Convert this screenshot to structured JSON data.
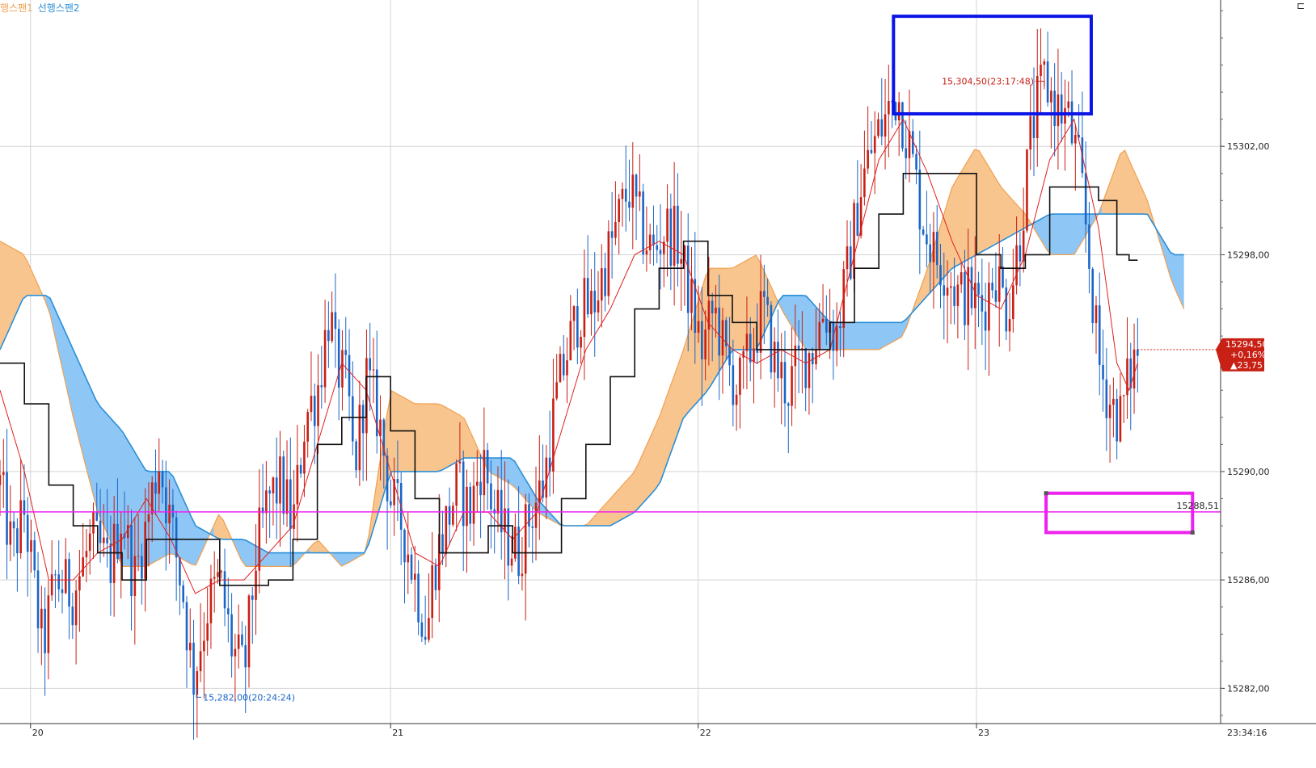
{
  "legend": {
    "span1": "행스팬1",
    "span2": "선행스팬2",
    "span1_color": "#f0a050",
    "span2_color": "#2a8fd8"
  },
  "corner_icon": "menu-icon",
  "chart_data": {
    "type": "candlestick",
    "indicator": "ichimoku",
    "ylim": [
      15280.7,
      15307.4
    ],
    "y_ticks": [
      "15302,00",
      "15298,00",
      "15290,00",
      "15286,00",
      "15282,00"
    ],
    "y_tick_values": [
      15302,
      15298,
      15290,
      15286,
      15282
    ],
    "x_ticks": [
      "20",
      "21",
      "22",
      "23"
    ],
    "x_tick_positions": [
      0.025,
      0.32,
      0.572,
      0.8
    ],
    "time_label": "23:34:16",
    "annotations": {
      "high": "15,304,50(23:17:48)",
      "low": "15,282,00(20:24:24)",
      "hline_label": "15288,51",
      "hline_value": 15288.51
    },
    "current_price": {
      "value": "15294,50",
      "change_pct": "+0,16%",
      "change": "▲23,75",
      "price": 15294.5
    },
    "colors": {
      "up": "#c82014",
      "down": "#1a66c8",
      "conversion": "#e02020",
      "base": "#111111",
      "cloud_bull": "#f9c58e",
      "cloud_bear": "#8ec6f5",
      "span1_line": "#f0a050",
      "span2_line": "#2a8fd8",
      "hline": "#ee22ee",
      "box_high": "#0a14e6",
      "box_low": "#ee22ee",
      "price_tag": "#c82014"
    },
    "price_path": [
      [
        0.0,
        15289.5
      ],
      [
        0.01,
        15287.0
      ],
      [
        0.02,
        15288.5
      ],
      [
        0.03,
        15285.0
      ],
      [
        0.035,
        15283.5
      ],
      [
        0.045,
        15286.0
      ],
      [
        0.06,
        15285.5
      ],
      [
        0.075,
        15287.5
      ],
      [
        0.09,
        15286.5
      ],
      [
        0.1,
        15288.5
      ],
      [
        0.11,
        15286.0
      ],
      [
        0.12,
        15288.0
      ],
      [
        0.13,
        15290.5
      ],
      [
        0.14,
        15288.0
      ],
      [
        0.15,
        15285.5
      ],
      [
        0.158,
        15282.3
      ],
      [
        0.17,
        15285.0
      ],
      [
        0.18,
        15286.0
      ],
      [
        0.19,
        15283.5
      ],
      [
        0.2,
        15282.5
      ],
      [
        0.21,
        15287.0
      ],
      [
        0.22,
        15289.0
      ],
      [
        0.23,
        15289.5
      ],
      [
        0.24,
        15288.0
      ],
      [
        0.25,
        15292.0
      ],
      [
        0.26,
        15293.0
      ],
      [
        0.27,
        15296.0
      ],
      [
        0.275,
        15294.0
      ],
      [
        0.285,
        15293.0
      ],
      [
        0.29,
        15290.0
      ],
      [
        0.3,
        15293.5
      ],
      [
        0.31,
        15292.0
      ],
      [
        0.32,
        15289.0
      ],
      [
        0.33,
        15288.0
      ],
      [
        0.34,
        15286.0
      ],
      [
        0.35,
        15284.0
      ],
      [
        0.355,
        15286.5
      ],
      [
        0.365,
        15288.0
      ],
      [
        0.375,
        15289.5
      ],
      [
        0.385,
        15288.5
      ],
      [
        0.395,
        15290.5
      ],
      [
        0.405,
        15288.5
      ],
      [
        0.415,
        15287.5
      ],
      [
        0.425,
        15287.0
      ],
      [
        0.435,
        15288.5
      ],
      [
        0.445,
        15289.5
      ],
      [
        0.455,
        15292.5
      ],
      [
        0.465,
        15294.5
      ],
      [
        0.475,
        15296.0
      ],
      [
        0.485,
        15296.0
      ],
      [
        0.495,
        15297.5
      ],
      [
        0.505,
        15299.0
      ],
      [
        0.515,
        15300.5
      ],
      [
        0.525,
        15299.0
      ],
      [
        0.535,
        15298.0
      ],
      [
        0.545,
        15299.0
      ],
      [
        0.555,
        15298.5
      ],
      [
        0.565,
        15296.5
      ],
      [
        0.575,
        15294.5
      ],
      [
        0.585,
        15296.0
      ],
      [
        0.595,
        15294.0
      ],
      [
        0.605,
        15293.0
      ],
      [
        0.615,
        15294.5
      ],
      [
        0.625,
        15296.0
      ],
      [
        0.635,
        15294.0
      ],
      [
        0.645,
        15293.0
      ],
      [
        0.655,
        15294.0
      ],
      [
        0.665,
        15294.5
      ],
      [
        0.675,
        15296.0
      ],
      [
        0.685,
        15295.0
      ],
      [
        0.695,
        15297.5
      ],
      [
        0.705,
        15300.5
      ],
      [
        0.715,
        15302.0
      ],
      [
        0.725,
        15303.0
      ],
      [
        0.735,
        15304.0
      ],
      [
        0.745,
        15302.0
      ],
      [
        0.755,
        15299.5
      ],
      [
        0.765,
        15298.0
      ],
      [
        0.775,
        15297.5
      ],
      [
        0.785,
        15296.5
      ],
      [
        0.795,
        15296.5
      ],
      [
        0.805,
        15296.0
      ],
      [
        0.815,
        15297.5
      ],
      [
        0.825,
        15296.0
      ],
      [
        0.835,
        15298.5
      ],
      [
        0.845,
        15302.5
      ],
      [
        0.855,
        15304.5
      ],
      [
        0.865,
        15303.5
      ],
      [
        0.875,
        15303.0
      ],
      [
        0.885,
        15301.0
      ],
      [
        0.893,
        15297.5
      ],
      [
        0.9,
        15294.0
      ],
      [
        0.91,
        15292.5
      ],
      [
        0.918,
        15292.0
      ],
      [
        0.925,
        15293.5
      ],
      [
        0.932,
        15294.5
      ]
    ],
    "conversion_line": [
      [
        0.0,
        15293.0
      ],
      [
        0.02,
        15290.0
      ],
      [
        0.04,
        15286.0
      ],
      [
        0.06,
        15286.0
      ],
      [
        0.08,
        15287.0
      ],
      [
        0.1,
        15287.5
      ],
      [
        0.12,
        15289.0
      ],
      [
        0.14,
        15287.5
      ],
      [
        0.16,
        15285.5
      ],
      [
        0.18,
        15286.0
      ],
      [
        0.2,
        15286.0
      ],
      [
        0.22,
        15287.0
      ],
      [
        0.24,
        15288.0
      ],
      [
        0.26,
        15291.0
      ],
      [
        0.28,
        15294.0
      ],
      [
        0.3,
        15293.0
      ],
      [
        0.32,
        15290.0
      ],
      [
        0.34,
        15287.0
      ],
      [
        0.36,
        15286.5
      ],
      [
        0.38,
        15288.5
      ],
      [
        0.4,
        15288.5
      ],
      [
        0.42,
        15287.5
      ],
      [
        0.44,
        15288.5
      ],
      [
        0.46,
        15291.5
      ],
      [
        0.48,
        15294.5
      ],
      [
        0.5,
        15296.0
      ],
      [
        0.52,
        15298.0
      ],
      [
        0.54,
        15298.5
      ],
      [
        0.56,
        15298.0
      ],
      [
        0.58,
        15295.5
      ],
      [
        0.6,
        15294.5
      ],
      [
        0.62,
        15294.0
      ],
      [
        0.64,
        15294.5
      ],
      [
        0.66,
        15294.0
      ],
      [
        0.68,
        15294.5
      ],
      [
        0.7,
        15298.0
      ],
      [
        0.72,
        15301.5
      ],
      [
        0.74,
        15303.0
      ],
      [
        0.76,
        15301.0
      ],
      [
        0.78,
        15298.5
      ],
      [
        0.8,
        15296.5
      ],
      [
        0.82,
        15296.0
      ],
      [
        0.84,
        15298.0
      ],
      [
        0.86,
        15301.5
      ],
      [
        0.88,
        15303.0
      ],
      [
        0.9,
        15299.0
      ],
      [
        0.915,
        15294.0
      ],
      [
        0.925,
        15293.0
      ],
      [
        0.932,
        15294.0
      ]
    ],
    "base_line": [
      [
        0.0,
        15294.0
      ],
      [
        0.02,
        15292.5
      ],
      [
        0.04,
        15289.5
      ],
      [
        0.06,
        15288.0
      ],
      [
        0.08,
        15287.0
      ],
      [
        0.1,
        15286.0
      ],
      [
        0.12,
        15287.5
      ],
      [
        0.14,
        15287.5
      ],
      [
        0.16,
        15287.5
      ],
      [
        0.18,
        15285.8
      ],
      [
        0.2,
        15285.8
      ],
      [
        0.22,
        15286.0
      ],
      [
        0.24,
        15287.5
      ],
      [
        0.26,
        15291.0
      ],
      [
        0.28,
        15292.0
      ],
      [
        0.3,
        15293.5
      ],
      [
        0.32,
        15291.5
      ],
      [
        0.34,
        15289.0
      ],
      [
        0.36,
        15287.0
      ],
      [
        0.38,
        15287.0
      ],
      [
        0.4,
        15288.0
      ],
      [
        0.42,
        15287.0
      ],
      [
        0.44,
        15287.0
      ],
      [
        0.46,
        15289.0
      ],
      [
        0.48,
        15291.0
      ],
      [
        0.5,
        15293.5
      ],
      [
        0.52,
        15296.0
      ],
      [
        0.54,
        15297.5
      ],
      [
        0.56,
        15298.5
      ],
      [
        0.58,
        15296.5
      ],
      [
        0.6,
        15295.5
      ],
      [
        0.62,
        15294.5
      ],
      [
        0.64,
        15294.5
      ],
      [
        0.66,
        15294.5
      ],
      [
        0.68,
        15295.5
      ],
      [
        0.7,
        15297.5
      ],
      [
        0.72,
        15299.5
      ],
      [
        0.74,
        15301.0
      ],
      [
        0.76,
        15301.0
      ],
      [
        0.78,
        15301.0
      ],
      [
        0.8,
        15298.0
      ],
      [
        0.82,
        15297.5
      ],
      [
        0.84,
        15298.0
      ],
      [
        0.86,
        15300.5
      ],
      [
        0.88,
        15300.5
      ],
      [
        0.9,
        15300.0
      ],
      [
        0.915,
        15298.0
      ],
      [
        0.925,
        15297.8
      ],
      [
        0.932,
        15297.8
      ]
    ],
    "span1": [
      [
        0.0,
        15298.5
      ],
      [
        0.02,
        15298.0
      ],
      [
        0.04,
        15296.0
      ],
      [
        0.06,
        15292.0
      ],
      [
        0.08,
        15288.5
      ],
      [
        0.1,
        15286.5
      ],
      [
        0.12,
        15286.5
      ],
      [
        0.14,
        15287.0
      ],
      [
        0.16,
        15286.5
      ],
      [
        0.18,
        15288.5
      ],
      [
        0.2,
        15286.5
      ],
      [
        0.22,
        15286.5
      ],
      [
        0.24,
        15286.5
      ],
      [
        0.26,
        15287.5
      ],
      [
        0.28,
        15286.5
      ],
      [
        0.3,
        15287.0
      ],
      [
        0.32,
        15293.0
      ],
      [
        0.34,
        15292.5
      ],
      [
        0.36,
        15292.5
      ],
      [
        0.38,
        15292.0
      ],
      [
        0.4,
        15290.0
      ],
      [
        0.42,
        15289.5
      ],
      [
        0.44,
        15288.5
      ],
      [
        0.46,
        15288.0
      ],
      [
        0.48,
        15288.0
      ],
      [
        0.5,
        15289.0
      ],
      [
        0.52,
        15290.0
      ],
      [
        0.54,
        15292.0
      ],
      [
        0.56,
        15294.5
      ],
      [
        0.58,
        15297.5
      ],
      [
        0.6,
        15297.5
      ],
      [
        0.62,
        15298.0
      ],
      [
        0.64,
        15296.0
      ],
      [
        0.66,
        15294.5
      ],
      [
        0.68,
        15294.5
      ],
      [
        0.7,
        15294.5
      ],
      [
        0.72,
        15294.5
      ],
      [
        0.74,
        15295.0
      ],
      [
        0.76,
        15297.5
      ],
      [
        0.78,
        15300.5
      ],
      [
        0.8,
        15302.0
      ],
      [
        0.82,
        15300.5
      ],
      [
        0.84,
        15299.5
      ],
      [
        0.86,
        15298.0
      ],
      [
        0.88,
        15298.0
      ],
      [
        0.9,
        15299.5
      ],
      [
        0.92,
        15302.0
      ],
      [
        0.94,
        15300.0
      ],
      [
        0.96,
        15297.0
      ],
      [
        0.97,
        15296.0
      ]
    ],
    "span2": [
      [
        0.0,
        15294.5
      ],
      [
        0.02,
        15296.5
      ],
      [
        0.04,
        15296.5
      ],
      [
        0.06,
        15294.5
      ],
      [
        0.08,
        15292.5
      ],
      [
        0.1,
        15291.5
      ],
      [
        0.12,
        15290.0
      ],
      [
        0.14,
        15290.0
      ],
      [
        0.16,
        15288.0
      ],
      [
        0.18,
        15287.5
      ],
      [
        0.2,
        15287.5
      ],
      [
        0.22,
        15287.0
      ],
      [
        0.24,
        15287.0
      ],
      [
        0.26,
        15287.0
      ],
      [
        0.28,
        15287.0
      ],
      [
        0.3,
        15287.0
      ],
      [
        0.32,
        15290.0
      ],
      [
        0.34,
        15290.0
      ],
      [
        0.36,
        15290.0
      ],
      [
        0.38,
        15290.5
      ],
      [
        0.4,
        15290.5
      ],
      [
        0.42,
        15290.5
      ],
      [
        0.44,
        15289.0
      ],
      [
        0.46,
        15288.0
      ],
      [
        0.48,
        15288.0
      ],
      [
        0.5,
        15288.0
      ],
      [
        0.52,
        15288.5
      ],
      [
        0.54,
        15289.5
      ],
      [
        0.56,
        15292.0
      ],
      [
        0.58,
        15293.0
      ],
      [
        0.6,
        15294.5
      ],
      [
        0.62,
        15294.5
      ],
      [
        0.64,
        15296.5
      ],
      [
        0.66,
        15296.5
      ],
      [
        0.68,
        15295.5
      ],
      [
        0.7,
        15295.5
      ],
      [
        0.72,
        15295.5
      ],
      [
        0.74,
        15295.5
      ],
      [
        0.76,
        15296.5
      ],
      [
        0.78,
        15297.5
      ],
      [
        0.8,
        15298.0
      ],
      [
        0.82,
        15298.5
      ],
      [
        0.84,
        15299.0
      ],
      [
        0.86,
        15299.5
      ],
      [
        0.88,
        15299.5
      ],
      [
        0.9,
        15299.5
      ],
      [
        0.92,
        15299.5
      ],
      [
        0.94,
        15299.5
      ],
      [
        0.96,
        15298.0
      ],
      [
        0.97,
        15298.0
      ]
    ]
  }
}
